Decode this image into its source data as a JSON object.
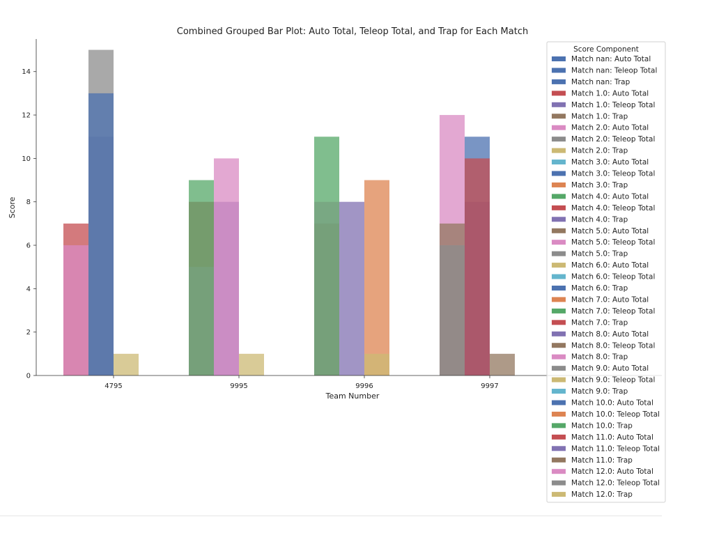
{
  "chart_data": {
    "type": "bar",
    "title": "Combined Grouped Bar Plot: Auto Total, Teleop Total, and Trap for Each Match",
    "xlabel": "Team Number",
    "ylabel": "Score",
    "categories": [
      "4795",
      "9995",
      "9996",
      "9997"
    ],
    "ylim": [
      0,
      15.5
    ],
    "yticks": [
      0,
      2,
      4,
      6,
      8,
      10,
      12,
      14
    ],
    "group_components": [
      "Auto Total",
      "Teleop Total",
      "Trap"
    ],
    "legend_title": "Score Component",
    "legend_placement": "right (partially overlapping plot)",
    "series": [
      {
        "name": "Match nan: Auto Total",
        "color": "#4c72b0",
        "component": 0,
        "values": [
          null,
          null,
          null,
          null
        ]
      },
      {
        "name": "Match nan: Teleop Total",
        "color": "#4c72b0",
        "component": 1,
        "values": [
          null,
          null,
          null,
          null
        ]
      },
      {
        "name": "Match nan: Trap",
        "color": "#4c72b0",
        "component": 2,
        "values": [
          null,
          null,
          null,
          null
        ]
      },
      {
        "name": "Match 1.0: Auto Total",
        "color": "#c44e52",
        "component": 0,
        "values": [
          7,
          8,
          7,
          null
        ]
      },
      {
        "name": "Match 1.0: Teleop Total",
        "color": "#8172b2",
        "component": 1,
        "values": [
          11,
          8,
          8,
          8
        ]
      },
      {
        "name": "Match 1.0: Trap",
        "color": "#937860",
        "component": 2,
        "values": [
          null,
          null,
          null,
          1
        ]
      },
      {
        "name": "Match 2.0: Auto Total",
        "color": "#da8bc3",
        "component": 0,
        "values": [
          6,
          5,
          8,
          12
        ]
      },
      {
        "name": "Match 2.0: Teleop Total",
        "color": "#8c8c8c",
        "component": 1,
        "values": [
          15,
          null,
          null,
          null
        ]
      },
      {
        "name": "Match 2.0: Trap",
        "color": "#ccb974",
        "component": 2,
        "values": [
          null,
          null,
          null,
          null
        ]
      },
      {
        "name": "Match 3.0: Auto Total",
        "color": "#64b5cd",
        "component": 0,
        "values": [
          null,
          null,
          null,
          null
        ]
      },
      {
        "name": "Match 3.0: Teleop Total",
        "color": "#4c72b0",
        "component": 1,
        "values": [
          13,
          null,
          null,
          11
        ]
      },
      {
        "name": "Match 3.0: Trap",
        "color": "#dd8452",
        "component": 2,
        "values": [
          null,
          null,
          9,
          null
        ]
      },
      {
        "name": "Match 4.0: Auto Total",
        "color": "#55a868",
        "component": 0,
        "values": [
          null,
          9,
          11,
          null
        ]
      },
      {
        "name": "Match 4.0: Teleop Total",
        "color": "#c44e52",
        "component": 1,
        "values": [
          null,
          null,
          null,
          10
        ]
      },
      {
        "name": "Match 4.0: Trap",
        "color": "#8172b2",
        "component": 2,
        "values": [
          null,
          null,
          null,
          null
        ]
      },
      {
        "name": "Match 5.0: Auto Total",
        "color": "#937860",
        "component": 0,
        "values": [
          null,
          null,
          null,
          7
        ]
      },
      {
        "name": "Match 5.0: Teleop Total",
        "color": "#da8bc3",
        "component": 1,
        "values": [
          null,
          10,
          null,
          null
        ]
      },
      {
        "name": "Match 5.0: Trap",
        "color": "#8c8c8c",
        "component": 2,
        "values": [
          null,
          null,
          null,
          null
        ]
      },
      {
        "name": "Match 6.0: Auto Total",
        "color": "#ccb974",
        "component": 0,
        "values": [
          null,
          null,
          null,
          null
        ]
      },
      {
        "name": "Match 6.0: Teleop Total",
        "color": "#64b5cd",
        "component": 1,
        "values": [
          null,
          null,
          null,
          null
        ]
      },
      {
        "name": "Match 6.0: Trap",
        "color": "#4c72b0",
        "component": 2,
        "values": [
          null,
          null,
          null,
          null
        ]
      },
      {
        "name": "Match 7.0: Auto Total",
        "color": "#dd8452",
        "component": 0,
        "values": [
          null,
          null,
          null,
          null
        ]
      },
      {
        "name": "Match 7.0: Teleop Total",
        "color": "#55a868",
        "component": 1,
        "values": [
          null,
          null,
          null,
          null
        ]
      },
      {
        "name": "Match 7.0: Trap",
        "color": "#c44e52",
        "component": 2,
        "values": [
          null,
          null,
          null,
          null
        ]
      },
      {
        "name": "Match 8.0: Auto Total",
        "color": "#8172b2",
        "component": 0,
        "values": [
          null,
          null,
          null,
          null
        ]
      },
      {
        "name": "Match 8.0: Teleop Total",
        "color": "#937860",
        "component": 1,
        "values": [
          null,
          null,
          null,
          null
        ]
      },
      {
        "name": "Match 8.0: Trap",
        "color": "#da8bc3",
        "component": 2,
        "values": [
          null,
          null,
          null,
          null
        ]
      },
      {
        "name": "Match 9.0: Auto Total",
        "color": "#8c8c8c",
        "component": 0,
        "values": [
          null,
          null,
          null,
          6
        ]
      },
      {
        "name": "Match 9.0: Teleop Total",
        "color": "#ccb974",
        "component": 1,
        "values": [
          null,
          null,
          null,
          null
        ]
      },
      {
        "name": "Match 9.0: Trap",
        "color": "#64b5cd",
        "component": 2,
        "values": [
          null,
          null,
          null,
          null
        ]
      },
      {
        "name": "Match 10.0: Auto Total",
        "color": "#4c72b0",
        "component": 0,
        "values": [
          null,
          null,
          null,
          null
        ]
      },
      {
        "name": "Match 10.0: Teleop Total",
        "color": "#dd8452",
        "component": 1,
        "values": [
          null,
          null,
          null,
          null
        ]
      },
      {
        "name": "Match 10.0: Trap",
        "color": "#55a868",
        "component": 2,
        "values": [
          null,
          null,
          null,
          null
        ]
      },
      {
        "name": "Match 11.0: Auto Total",
        "color": "#c44e52",
        "component": 0,
        "values": [
          null,
          null,
          null,
          null
        ]
      },
      {
        "name": "Match 11.0: Teleop Total",
        "color": "#8172b2",
        "component": 1,
        "values": [
          null,
          null,
          null,
          null
        ]
      },
      {
        "name": "Match 11.0: Trap",
        "color": "#937860",
        "component": 2,
        "values": [
          null,
          null,
          null,
          null
        ]
      },
      {
        "name": "Match 12.0: Auto Total",
        "color": "#da8bc3",
        "component": 0,
        "values": [
          null,
          null,
          null,
          null
        ]
      },
      {
        "name": "Match 12.0: Teleop Total",
        "color": "#8c8c8c",
        "component": 1,
        "values": [
          null,
          null,
          null,
          null
        ]
      },
      {
        "name": "Match 12.0: Trap",
        "color": "#ccb974",
        "component": 2,
        "values": [
          1,
          1,
          1,
          null
        ]
      }
    ]
  }
}
